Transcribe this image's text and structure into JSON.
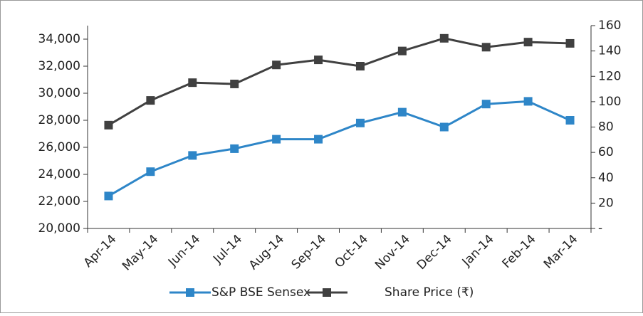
{
  "chart_data": {
    "type": "line",
    "categories": [
      "Apr-14",
      "May-14",
      "Jun-14",
      "Jul-14",
      "Aug-14",
      "Sep-14",
      "Oct-14",
      "Nov-14",
      "Dec-14",
      "Jan-14",
      "Feb-14",
      "Mar-14"
    ],
    "series": [
      {
        "name": "S&P BSE Sensex",
        "color": "#2e86c8",
        "values": [
          22400,
          24200,
          25400,
          25900,
          26600,
          26600,
          27800,
          28600,
          27500,
          29200,
          29400,
          28000
        ]
      },
      {
        "name": "Share Price (₹)",
        "color": "#404040",
        "axis": "y2",
        "values": [
          81.5,
          101,
          115,
          114,
          129,
          133,
          128,
          140,
          150,
          143,
          147,
          146
        ]
      }
    ],
    "ylim": [
      20000,
      35000
    ],
    "yticks": [
      {
        "value": 20000,
        "label": "20,000"
      },
      {
        "value": 22000,
        "label": "22,000"
      },
      {
        "value": 24000,
        "label": "24,000"
      },
      {
        "value": 26000,
        "label": "26,000"
      },
      {
        "value": 28000,
        "label": "28,000"
      },
      {
        "value": 30000,
        "label": "30,000"
      },
      {
        "value": 32000,
        "label": "32,000"
      },
      {
        "value": 34000,
        "label": "34,000"
      }
    ],
    "y2lim": [
      0,
      160
    ],
    "y2ticks": [
      {
        "value": 0,
        "label": "-"
      },
      20,
      40,
      60,
      80,
      100,
      120,
      140,
      160
    ],
    "legend": "bottom"
  }
}
